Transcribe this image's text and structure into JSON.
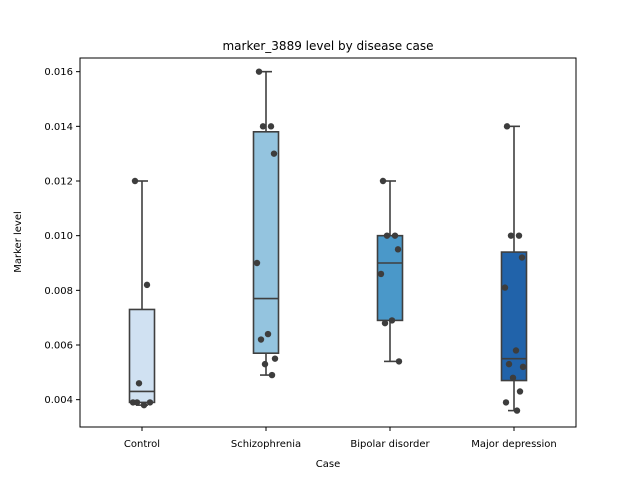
{
  "chart_data": {
    "type": "box",
    "title": "marker_3889 level by disease case",
    "xlabel": "Case",
    "ylabel": "Marker level",
    "ylim": [
      0.003,
      0.0165
    ],
    "yticks": [
      0.004,
      0.006,
      0.008,
      0.01,
      0.012,
      0.014,
      0.016
    ],
    "ytick_labels": [
      "0.004",
      "0.006",
      "0.008",
      "0.010",
      "0.012",
      "0.014",
      "0.016"
    ],
    "grid": false,
    "categories": [
      "Control",
      "Schizophrenia",
      "Bipolar disorder",
      "Major depression"
    ],
    "groups": [
      {
        "name": "Control",
        "color": "#d0e1f2",
        "min": 0.0038,
        "q1": 0.0039,
        "median": 0.0043,
        "q3": 0.0073,
        "max": 0.012,
        "points": [
          0.012,
          0.0082,
          0.0046,
          0.0039,
          0.0039,
          0.0038,
          0.0039
        ]
      },
      {
        "name": "Schizophrenia",
        "color": "#94c4df",
        "min": 0.0049,
        "q1": 0.0057,
        "median": 0.0077,
        "q3": 0.0138,
        "max": 0.016,
        "points": [
          0.016,
          0.014,
          0.014,
          0.013,
          0.009,
          0.0064,
          0.0062,
          0.0055,
          0.0053,
          0.0049
        ]
      },
      {
        "name": "Bipolar disorder",
        "color": "#4a98c9",
        "min": 0.0054,
        "q1": 0.0069,
        "median": 0.009,
        "q3": 0.01,
        "max": 0.012,
        "points": [
          0.012,
          0.01,
          0.01,
          0.0095,
          0.0086,
          0.0069,
          0.0068,
          0.0054
        ]
      },
      {
        "name": "Major depression",
        "color": "#2163aa",
        "min": 0.0036,
        "q1": 0.0047,
        "median": 0.0055,
        "q3": 0.0094,
        "max": 0.014,
        "points": [
          0.014,
          0.01,
          0.01,
          0.0092,
          0.0081,
          0.0058,
          0.0053,
          0.0052,
          0.0048,
          0.0043,
          0.0039,
          0.0036
        ]
      }
    ]
  }
}
